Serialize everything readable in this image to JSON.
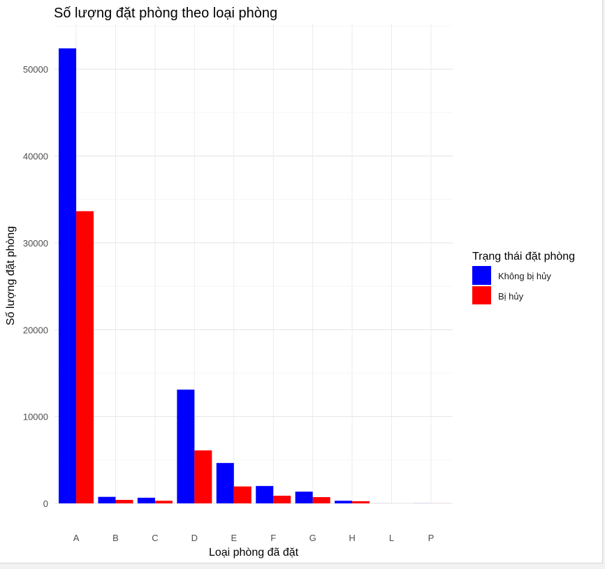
{
  "chart_data": {
    "type": "bar",
    "title": "Số lượng đặt phòng theo loại phòng",
    "xlabel": "Loại phòng đã đặt",
    "ylabel": "Số lượng đặt phòng",
    "categories": [
      "A",
      "B",
      "C",
      "D",
      "E",
      "F",
      "G",
      "H",
      "L",
      "P"
    ],
    "series": [
      {
        "name": "Không bị hủy",
        "color": "#0000ff",
        "values": [
          52400,
          750,
          650,
          13100,
          4650,
          2000,
          1350,
          300,
          4,
          7
        ]
      },
      {
        "name": "Bị hủy",
        "color": "#ff0000",
        "values": [
          33650,
          400,
          300,
          6100,
          1950,
          880,
          720,
          250,
          2,
          5
        ]
      }
    ],
    "ylim": [
      0,
      53000
    ],
    "yticks": [
      0,
      10000,
      20000,
      30000,
      40000,
      50000
    ],
    "ytick_labels": [
      "0",
      "10000",
      "20000",
      "30000",
      "40000",
      "50000"
    ],
    "grid": true,
    "legend": {
      "title": "Trạng thái đặt phòng",
      "position": "right"
    }
  }
}
